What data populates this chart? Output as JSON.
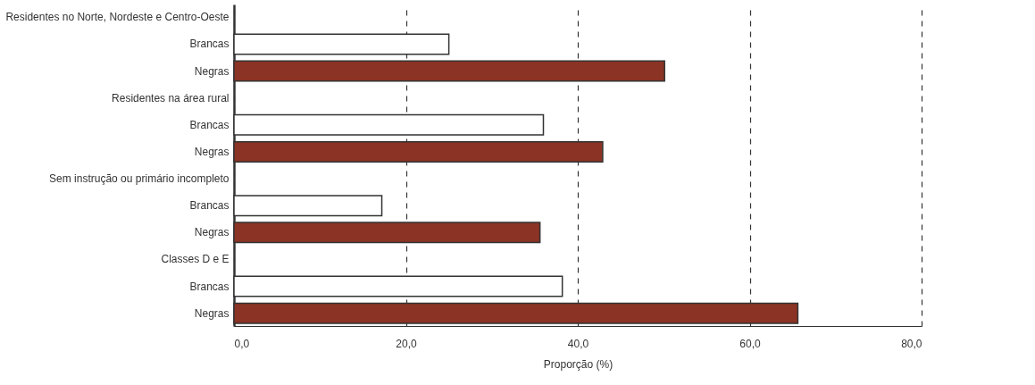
{
  "chart_data": {
    "type": "bar",
    "orientation": "horizontal",
    "categories": [
      "Residentes no Norte, Nordeste e Centro-Oeste",
      "Brancas",
      "Negras",
      "Residentes na área rural",
      "Brancas",
      "Negras",
      "Sem instrução ou primário incompleto",
      "Brancas",
      "Negras",
      "Classes D e E",
      "Brancas",
      "Negras"
    ],
    "values": [
      null,
      25.0,
      50.1,
      null,
      36.0,
      42.9,
      null,
      17.2,
      35.6,
      null,
      38.2,
      65.6
    ],
    "colors": [
      "#ffffff",
      "#ffffff",
      "#8b3324",
      "#ffffff",
      "#ffffff",
      "#8b3324",
      "#ffffff",
      "#ffffff",
      "#8b3324",
      "#ffffff",
      "#ffffff",
      "#8b3324"
    ],
    "xlabel": "Proporção (%)",
    "xlim": [
      0,
      80
    ],
    "xticks": [
      {
        "value": 0,
        "label": "0,0"
      },
      {
        "value": 20,
        "label": "20,0"
      },
      {
        "value": 40,
        "label": "40,0"
      },
      {
        "value": 60,
        "label": "60,0"
      },
      {
        "value": 80,
        "label": "80,0"
      }
    ],
    "grid": "x"
  }
}
